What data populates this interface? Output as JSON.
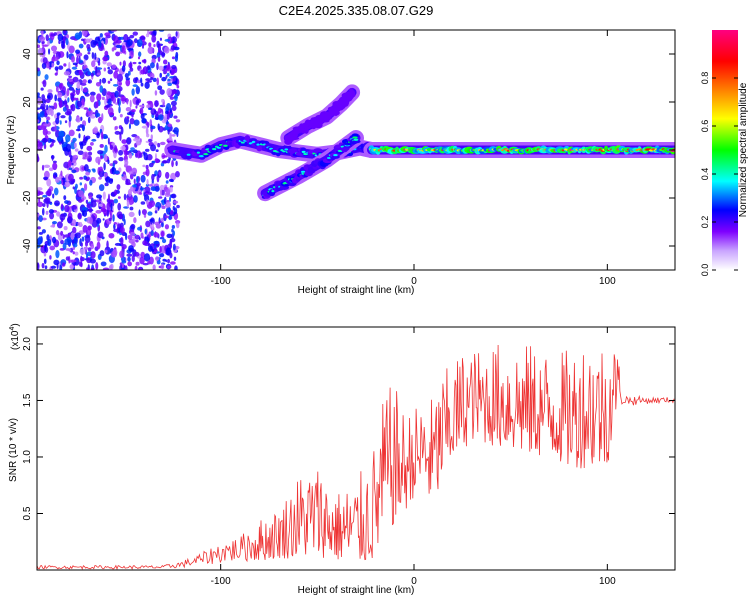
{
  "title": "C2E4.2025.335.08.07.G29",
  "chart_data": [
    {
      "id": "spectrogram",
      "type": "heatmap",
      "title": "C2E4.2025.335.08.07.G29",
      "xlabel": "Height of straight line (km)",
      "ylabel": "Frequency (Hz)",
      "xlim": [
        -195,
        135
      ],
      "ylim": [
        -50,
        50
      ],
      "x_ticks": [
        -100,
        0,
        100
      ],
      "x_tick_labels": [
        "-100",
        "0",
        "100"
      ],
      "y_ticks": [
        -40,
        -20,
        0,
        20,
        40
      ],
      "y_tick_labels": [
        "-40",
        "-20",
        "0",
        "20",
        "40"
      ],
      "noise_region": {
        "x_from": -195,
        "x_to": -122,
        "amplitude_range": [
          0.05,
          0.3
        ]
      },
      "ridges": [
        {
          "name": "main carrier (left segment)",
          "points": [
            [
              -125,
              0
            ],
            [
              -110,
              -2
            ],
            [
              -100,
              2
            ],
            [
              -90,
              4
            ],
            [
              -80,
              2
            ],
            [
              -70,
              0
            ],
            [
              -60,
              -1
            ],
            [
              -50,
              -2
            ],
            [
              -40,
              -1
            ],
            [
              -28,
              1
            ],
            [
              -22,
              0
            ]
          ],
          "amplitude": 0.45
        },
        {
          "name": "main carrier (right segment)",
          "points": [
            [
              -22,
              0
            ],
            [
              0,
              0
            ],
            [
              20,
              0
            ],
            [
              40,
              0
            ],
            [
              60,
              0
            ],
            [
              80,
              0
            ],
            [
              100,
              0
            ],
            [
              115,
              0
            ],
            [
              135,
              0
            ]
          ],
          "amplitude": 0.95
        },
        {
          "name": "descending branch",
          "points": [
            [
              -77,
              -18
            ],
            [
              -60,
              -11
            ],
            [
              -45,
              -4
            ],
            [
              -30,
              5
            ]
          ],
          "amplitude": 0.45
        },
        {
          "name": "upper branch",
          "points": [
            [
              -65,
              5
            ],
            [
              -55,
              10
            ],
            [
              -45,
              14
            ],
            [
              -38,
              19
            ],
            [
              -32,
              24
            ]
          ],
          "amplitude": 0.2
        }
      ],
      "colorbar": {
        "label": "Normalized spectral amplitude",
        "range": [
          0.0,
          1.0
        ],
        "ticks": [
          0.0,
          0.2,
          0.4,
          0.6,
          0.8
        ],
        "tick_labels": [
          "0.0",
          "0.2",
          "0.4",
          "0.6",
          "0.8"
        ],
        "colors": [
          "#ffffff",
          "#7f00ff",
          "#0000ff",
          "#00ffff",
          "#00ff00",
          "#ffff00",
          "#ff8000",
          "#ff0000",
          "#ff00ff"
        ]
      }
    },
    {
      "id": "snr",
      "type": "line",
      "xlabel": "Height of straight line (km)",
      "ylabel": "SNR (10 * v/v)",
      "y_multiplier_label": "(x10",
      "y_multiplier_exponent": "4",
      "xlim": [
        -195,
        135
      ],
      "ylim": [
        0,
        2.15
      ],
      "x_ticks": [
        -100,
        0,
        100
      ],
      "x_tick_labels": [
        "-100",
        "0",
        "100"
      ],
      "y_ticks": [
        0.5,
        1.0,
        1.5,
        2.0
      ],
      "y_tick_labels": [
        "0.5",
        "1.0",
        "1.5",
        "2.0"
      ],
      "series": [
        {
          "name": "SNR",
          "color": "#ee3333",
          "envelope": {
            "x": [
              -195,
              -130,
              -120,
              -110,
              -100,
              -90,
              -80,
              -70,
              -60,
              -50,
              -40,
              -30,
              -25,
              -20,
              -15,
              -10,
              -5,
              0,
              5,
              10,
              15,
              20,
              25,
              30,
              40,
              50,
              60,
              70,
              80,
              90,
              100,
              105,
              108,
              110,
              120,
              135
            ],
            "lower": [
              0.01,
              0.01,
              0.02,
              0.04,
              0.06,
              0.07,
              0.08,
              0.1,
              0.1,
              0.12,
              0.08,
              0.05,
              0.05,
              0.08,
              0.3,
              0.4,
              0.5,
              0.65,
              0.72,
              0.5,
              0.8,
              0.95,
              1.05,
              1.15,
              1.1,
              1.05,
              1.0,
              1.0,
              0.9,
              0.9,
              0.9,
              1.45,
              1.45,
              1.45,
              1.47,
              1.48
            ],
            "upper": [
              0.04,
              0.04,
              0.08,
              0.15,
              0.25,
              0.3,
              0.45,
              0.55,
              0.85,
              0.95,
              0.7,
              0.8,
              0.95,
              1.15,
              1.6,
              1.65,
              1.4,
              1.45,
              1.5,
              1.55,
              1.75,
              1.85,
              1.95,
              1.95,
              2.0,
              2.05,
              2.0,
              1.95,
              1.95,
              2.1,
              2.05,
              2.0,
              1.6,
              1.55,
              1.53,
              1.53
            ]
          },
          "points": [
            [
              -195,
              0.02
            ],
            [
              -150,
              0.025
            ],
            [
              -125,
              0.03
            ],
            [
              -120,
              0.05
            ],
            [
              -115,
              0.08
            ],
            [
              -110,
              0.12
            ],
            [
              -105,
              0.15
            ],
            [
              -100,
              0.2
            ],
            [
              -95,
              0.22
            ],
            [
              -90,
              0.25
            ],
            [
              -85,
              0.3
            ],
            [
              -80,
              0.35
            ],
            [
              -75,
              0.4
            ],
            [
              -70,
              0.45
            ],
            [
              -65,
              0.55
            ],
            [
              -60,
              0.6
            ],
            [
              -55,
              0.55
            ],
            [
              -50,
              0.45
            ],
            [
              -45,
              0.35
            ],
            [
              -40,
              0.3
            ],
            [
              -35,
              0.4
            ],
            [
              -30,
              0.45
            ],
            [
              -25,
              0.5
            ],
            [
              -20,
              0.65
            ],
            [
              -15,
              0.95
            ],
            [
              -10,
              1.1
            ],
            [
              -5,
              1.0
            ],
            [
              0,
              1.0
            ],
            [
              5,
              1.05
            ],
            [
              10,
              0.9
            ],
            [
              15,
              1.2
            ],
            [
              20,
              1.35
            ],
            [
              25,
              1.45
            ],
            [
              30,
              1.5
            ],
            [
              40,
              1.5
            ],
            [
              50,
              1.55
            ],
            [
              60,
              1.5
            ],
            [
              70,
              1.45
            ],
            [
              80,
              1.5
            ],
            [
              90,
              1.55
            ],
            [
              100,
              1.45
            ],
            [
              105,
              1.52
            ],
            [
              110,
              1.5
            ],
            [
              120,
              1.5
            ],
            [
              135,
              1.5
            ]
          ]
        }
      ]
    }
  ]
}
